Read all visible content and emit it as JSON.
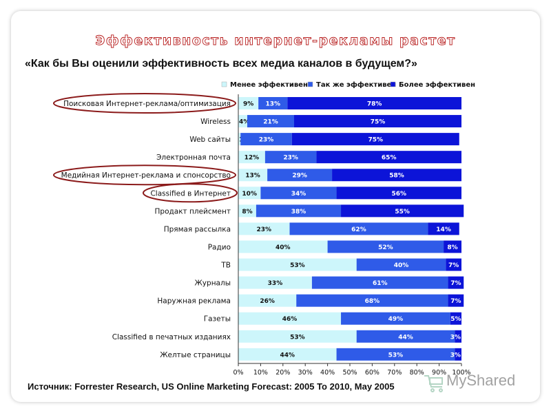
{
  "header": {
    "title": "Эффективность интернет-рекламы растет",
    "question": "«Как бы Вы оценили эффективность всех медиа каналов в будущем?»"
  },
  "footer": {
    "source": "Источник: Forrester Research, US Online Marketing Forecast: 2005 To 2010, May 2005",
    "watermark": "MyShared"
  },
  "chart_data": {
    "type": "bar",
    "orientation": "horizontal",
    "stacked": true,
    "categories": [
      "Поисковая Интернет-реклама/оптимизация",
      "Wireless",
      "Web сайты",
      "Электронная почта",
      "Медийная Интернет-реклама и спонсорство",
      "Classified в Интернет",
      "Продакт плейсмент",
      "Прямая рассылка",
      "Радио",
      "ТВ",
      "Журналы",
      "Наружная реклама",
      "Газеты",
      "Classified в печатных изданиях",
      "Желтые страницы"
    ],
    "series": [
      {
        "name": "Менее эффективен",
        "color": "#cdf6fb",
        "values": [
          9,
          4,
          1,
          12,
          13,
          10,
          8,
          23,
          40,
          53,
          33,
          26,
          46,
          53,
          44
        ]
      },
      {
        "name": "Так же эффективен",
        "color": "#2f5be8",
        "values": [
          13,
          21,
          23,
          23,
          29,
          34,
          38,
          62,
          52,
          40,
          61,
          68,
          49,
          44,
          53
        ]
      },
      {
        "name": "Более эффективен",
        "color": "#0c14d8",
        "values": [
          78,
          75,
          75,
          65,
          58,
          56,
          55,
          14,
          8,
          7,
          7,
          7,
          5,
          3,
          3
        ]
      }
    ],
    "value_labels": [
      [
        "9%",
        "13%",
        "78%"
      ],
      [
        "4%",
        "21%",
        "75%"
      ],
      [
        "1%",
        "23%",
        "75%"
      ],
      [
        "12%",
        "23%",
        "65%"
      ],
      [
        "13%",
        "29%",
        "58%"
      ],
      [
        "10%",
        "34%",
        "56%"
      ],
      [
        "8%",
        "38%",
        "55%"
      ],
      [
        "23%",
        "62%",
        "14%"
      ],
      [
        "40%",
        "52%",
        "8%"
      ],
      [
        "53%",
        "40%",
        "7%"
      ],
      [
        "33%",
        "61%",
        "7%"
      ],
      [
        "26%",
        "68%",
        "7%"
      ],
      [
        "46%",
        "49%",
        "5%"
      ],
      [
        "53%",
        "44%",
        "3%"
      ],
      [
        "44%",
        "53%",
        "3%"
      ]
    ],
    "x_ticks": [
      "0%",
      "10%",
      "20%",
      "30%",
      "40%",
      "50%",
      "60%",
      "70%",
      "80%",
      "90%",
      "100%"
    ],
    "xlim": [
      0,
      100
    ],
    "legend_position": "top",
    "highlighted_categories": [
      0,
      4,
      5
    ],
    "highlight_color": "#8b1a1a",
    "grid": false
  }
}
